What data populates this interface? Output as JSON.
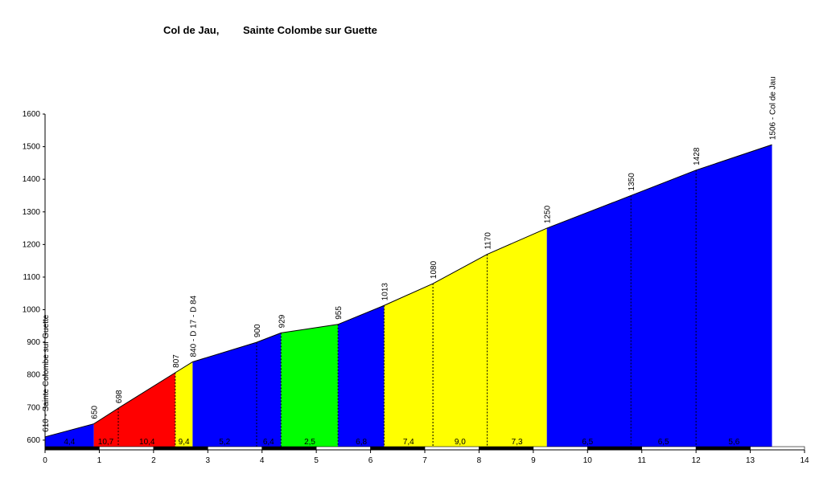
{
  "title_parts": [
    "Col de Jau,",
    "Sainte Colombe sur Guette"
  ],
  "chart_data": {
    "type": "area",
    "xlim": [
      0,
      14
    ],
    "ylim": [
      580,
      1600
    ],
    "x_ticks": [
      0,
      1,
      2,
      3,
      4,
      5,
      6,
      7,
      8,
      9,
      10,
      11,
      12,
      13,
      14
    ],
    "y_ticks": [
      600,
      700,
      800,
      900,
      1000,
      1100,
      1200,
      1300,
      1400,
      1500,
      1600
    ],
    "profile": [
      {
        "x": 0,
        "y": 610,
        "label": "610 - Sainte Colombe sur Guette"
      },
      {
        "x": 0.9,
        "y": 650,
        "label": "650"
      },
      {
        "x": 1.35,
        "y": 698,
        "label": "698"
      },
      {
        "x": 2.4,
        "y": 807,
        "label": "807"
      },
      {
        "x": 2.72,
        "y": 840,
        "label": "840 - D 17 - D 84"
      },
      {
        "x": 3.9,
        "y": 900,
        "label": "900"
      },
      {
        "x": 4.35,
        "y": 929,
        "label": "929"
      },
      {
        "x": 5.4,
        "y": 955,
        "label": "955"
      },
      {
        "x": 6.25,
        "y": 1013,
        "label": "1013"
      },
      {
        "x": 7.15,
        "y": 1080,
        "label": "1080"
      },
      {
        "x": 8.15,
        "y": 1170,
        "label": "1170"
      },
      {
        "x": 9.25,
        "y": 1250,
        "label": "1250"
      },
      {
        "x": 10.8,
        "y": 1350,
        "label": "1350"
      },
      {
        "x": 12.0,
        "y": 1428,
        "label": "1428"
      },
      {
        "x": 13.4,
        "y": 1506,
        "label": "1506 - Col de Jau"
      }
    ],
    "segments": [
      {
        "from": 0,
        "to": 0.9,
        "color": "#0000ff",
        "gradient": "4,4"
      },
      {
        "from": 0.9,
        "to": 2.4,
        "color": "#ff0000"
      },
      {
        "from": 2.4,
        "to": 2.72,
        "color": "#ffff00",
        "gradient": "9,4"
      },
      {
        "from": 2.72,
        "to": 4.35,
        "color": "#0000ff"
      },
      {
        "from": 4.35,
        "to": 5.4,
        "color": "#00ff00",
        "gradient": "2,5"
      },
      {
        "from": 5.4,
        "to": 6.25,
        "color": "#0000ff",
        "gradient": "6,8"
      },
      {
        "from": 6.25,
        "to": 9.25,
        "color": "#ffff00"
      },
      {
        "from": 9.25,
        "to": 13.4,
        "color": "#0000ff"
      }
    ],
    "gradient_labels": [
      {
        "x": 0.45,
        "text": "4,4"
      },
      {
        "x": 1.12,
        "text": "10,7"
      },
      {
        "x": 1.88,
        "text": "10,4"
      },
      {
        "x": 2.56,
        "text": "9,4"
      },
      {
        "x": 3.31,
        "text": "5,2"
      },
      {
        "x": 4.12,
        "text": "6,4"
      },
      {
        "x": 4.88,
        "text": "2,5"
      },
      {
        "x": 5.83,
        "text": "6,8"
      },
      {
        "x": 6.7,
        "text": "7,4"
      },
      {
        "x": 7.65,
        "text": "9,0"
      },
      {
        "x": 8.7,
        "text": "7,3"
      },
      {
        "x": 10.0,
        "text": "6,5"
      },
      {
        "x": 11.4,
        "text": "6,5"
      },
      {
        "x": 12.7,
        "text": "5,6"
      }
    ],
    "dividers": [
      1.35,
      2.4,
      3.9,
      4.35,
      5.4,
      6.25,
      7.15,
      8.15,
      10.8,
      12.0
    ],
    "xlabel": "",
    "ylabel": "",
    "grid": false
  }
}
